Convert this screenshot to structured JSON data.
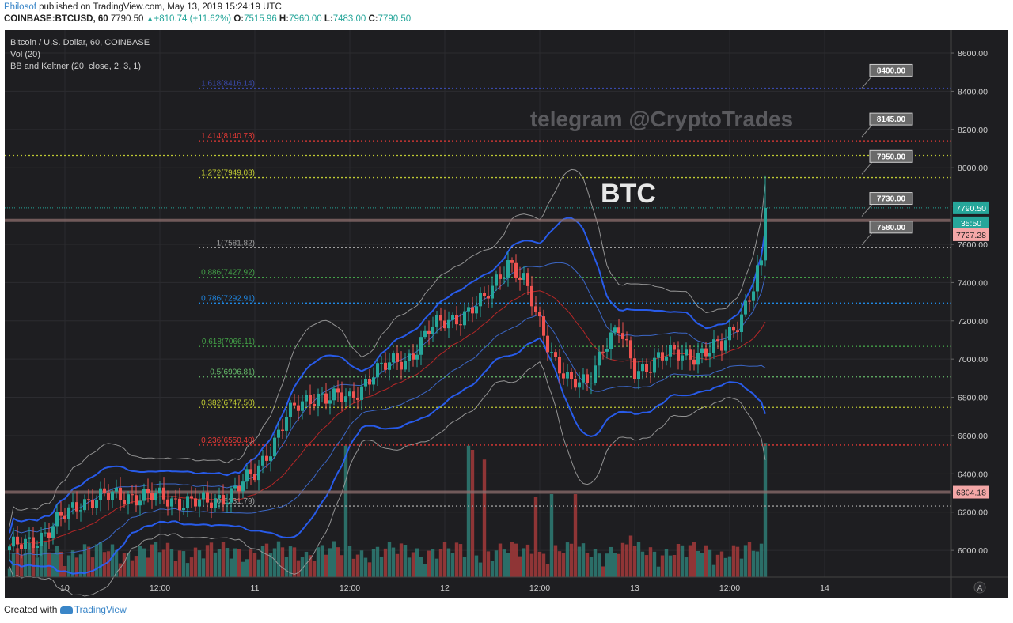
{
  "header": {
    "author": "Philosof",
    "published": " published on TradingView.com, May 13, 2019 15:24:19 UTC",
    "symbol": "COINBASE:BTCUSD, 60",
    "last": "7790.50",
    "change": "+810.74 (+11.62%)",
    "o_label": "O:",
    "o": "7515.96",
    "h_label": "H:",
    "h": "7960.00",
    "l_label": "L:",
    "l": "7483.00",
    "c_label": "C:",
    "c": "7790.50"
  },
  "legend": {
    "line1": "Bitcoin / U.S. Dollar, 60, COINBASE",
    "line2": "Vol (20)",
    "line3": "BB and Keltner (20, close, 2, 3, 1)"
  },
  "watermark": "telegram @CryptoTrades",
  "big_label": "BTC",
  "footer": {
    "created_with": "Created with ",
    "brand": "TradingView"
  },
  "colors": {
    "background": "#1e1e21",
    "up": "#26a69a",
    "down": "#ef5350",
    "bb_blue": "#2962ff",
    "keltner_grey": "#9e9e9e",
    "middle": "#c62828"
  },
  "chart_data": {
    "type": "candlestick",
    "ylim": [
      5860,
      8720
    ],
    "y_ticks": [
      "8600.00",
      "8400.00",
      "8200.00",
      "8000.00",
      "7800.00",
      "7600.00",
      "7400.00",
      "7200.00",
      "7000.00",
      "6800.00",
      "6600.00",
      "6400.00",
      "6200.00",
      "6000.00"
    ],
    "x_ticks": [
      {
        "label": "10",
        "t": 14
      },
      {
        "label": "12:00",
        "t": 38
      },
      {
        "label": "11",
        "t": 62
      },
      {
        "label": "12:00",
        "t": 86
      },
      {
        "label": "12",
        "t": 110
      },
      {
        "label": "12:00",
        "t": 134
      },
      {
        "label": "13",
        "t": 158
      },
      {
        "label": "12:00",
        "t": 182
      },
      {
        "label": "14",
        "t": 206
      }
    ],
    "fib_levels": [
      {
        "label": "1.618(8416.14)",
        "value": 8416.14,
        "color": "#3949ab"
      },
      {
        "label": "1.414(8140.73)",
        "value": 8140.73,
        "color": "#e53935"
      },
      {
        "label": "1.272(7949.03)",
        "value": 7949.03,
        "color": "#c0ca33"
      },
      {
        "label": "1(7581.82)",
        "value": 7581.82,
        "color": "#9e9e9e"
      },
      {
        "label": "0.886(7427.92)",
        "value": 7427.92,
        "color": "#43a047"
      },
      {
        "label": "0.786(7292.91)",
        "value": 7292.91,
        "color": "#1e88e5"
      },
      {
        "label": "0.618(7066.11)",
        "value": 7066.11,
        "color": "#43a047"
      },
      {
        "label": "0.5(6906.81)",
        "value": 6906.81,
        "color": "#66bb6a"
      },
      {
        "label": "0.382(6747.50)",
        "value": 6747.5,
        "color": "#c0ca33"
      },
      {
        "label": "0.236(6550.40)",
        "value": 6550.4,
        "color": "#e53935"
      },
      {
        "label": "0(6231.79)",
        "value": 6231.79,
        "color": "#9e9e9e"
      }
    ],
    "extra_level": {
      "value": 8065,
      "color": "#c0ca33"
    },
    "horizontal_lines": [
      {
        "value": 7725,
        "color": "#8d6e6e"
      },
      {
        "value": 6304.18,
        "color": "#8d6e6e"
      }
    ],
    "price_tags": [
      {
        "label": "7790.50",
        "value": 7790.5,
        "bg": "#26a69a",
        "fg": "#ffffff"
      },
      {
        "label": "35:50",
        "value": 7712,
        "bg": "#26a69a",
        "fg": "#ffffff"
      },
      {
        "label": "7727.28",
        "value": 7650,
        "bg": "#f4a7a7",
        "fg": "#222222"
      },
      {
        "label": "6304.18",
        "value": 6304.18,
        "bg": "#f4a7a7",
        "fg": "#222222"
      }
    ],
    "target_labels": [
      {
        "label": "8400.00",
        "value": 8400
      },
      {
        "label": "8145.00",
        "value": 8145
      },
      {
        "label": "7950.00",
        "value": 7950
      },
      {
        "label": "7730.00",
        "value": 7730
      },
      {
        "label": "7580.00",
        "value": 7580
      }
    ],
    "anchors": [
      {
        "t": 0,
        "p": 6000
      },
      {
        "t": 10,
        "p": 6100
      },
      {
        "t": 18,
        "p": 6260
      },
      {
        "t": 30,
        "p": 6290
      },
      {
        "t": 44,
        "p": 6260
      },
      {
        "t": 50,
        "p": 6240
      },
      {
        "t": 56,
        "p": 6310
      },
      {
        "t": 62,
        "p": 6390
      },
      {
        "t": 70,
        "p": 6700
      },
      {
        "t": 78,
        "p": 6820
      },
      {
        "t": 86,
        "p": 6780
      },
      {
        "t": 92,
        "p": 6940
      },
      {
        "t": 100,
        "p": 6990
      },
      {
        "t": 106,
        "p": 7150
      },
      {
        "t": 112,
        "p": 7210
      },
      {
        "t": 120,
        "p": 7300
      },
      {
        "t": 126,
        "p": 7520
      },
      {
        "t": 130,
        "p": 7400
      },
      {
        "t": 134,
        "p": 7180
      },
      {
        "t": 138,
        "p": 7000
      },
      {
        "t": 142,
        "p": 6860
      },
      {
        "t": 146,
        "p": 6870
      },
      {
        "t": 150,
        "p": 7080
      },
      {
        "t": 154,
        "p": 7150
      },
      {
        "t": 158,
        "p": 6930
      },
      {
        "t": 164,
        "p": 7010
      },
      {
        "t": 170,
        "p": 7020
      },
      {
        "t": 176,
        "p": 7040
      },
      {
        "t": 180,
        "p": 7060
      },
      {
        "t": 184,
        "p": 7200
      },
      {
        "t": 188,
        "p": 7380
      },
      {
        "t": 190,
        "p": 7515.96
      },
      {
        "t": 191,
        "p": 7790.5
      }
    ],
    "volume_peaks": [
      {
        "t": 85,
        "v": 0.95
      },
      {
        "t": 116,
        "v": 0.95
      },
      {
        "t": 117,
        "v": 0.92
      },
      {
        "t": 120,
        "v": 0.85
      },
      {
        "t": 133,
        "v": 0.58
      },
      {
        "t": 137,
        "v": 0.6
      },
      {
        "t": 143,
        "v": 0.6
      },
      {
        "t": 157,
        "v": 0.3
      },
      {
        "t": 191,
        "v": 0.97
      }
    ]
  }
}
